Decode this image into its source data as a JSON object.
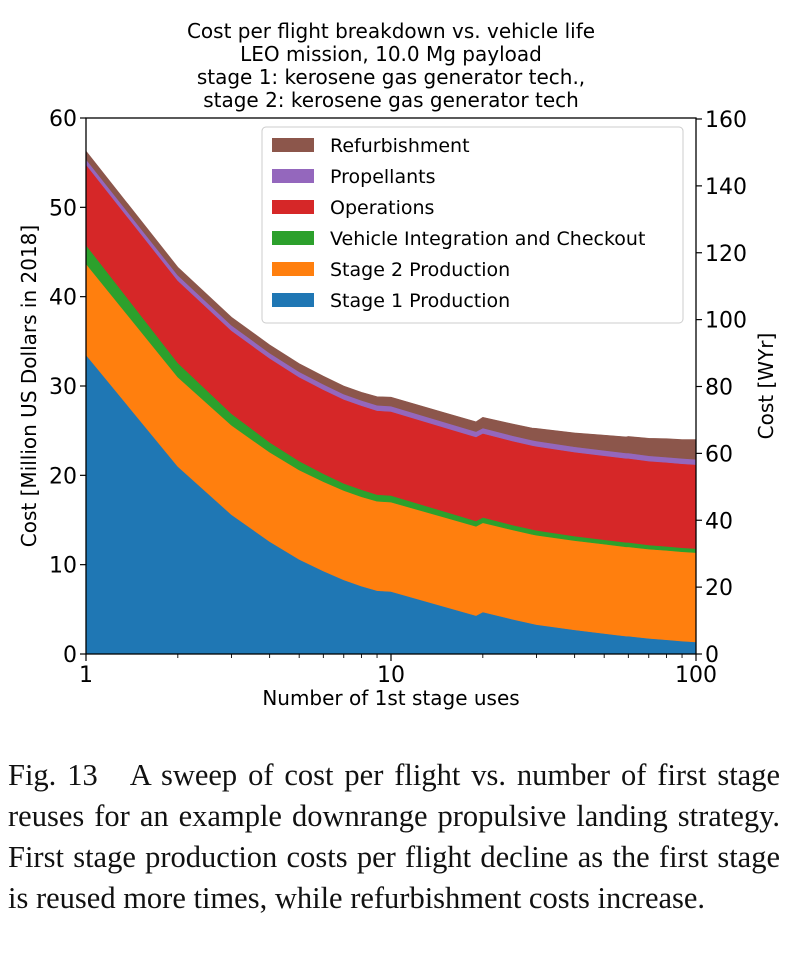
{
  "chart_data": {
    "type": "area",
    "stacked": true,
    "title_lines": [
      "Cost per flight breakdown vs. vehicle life",
      "LEO mission, 10.0 Mg payload",
      "stage 1: kerosene gas generator tech.,",
      "stage 2: kerosene gas generator tech"
    ],
    "xlabel": "Number of 1st stage uses",
    "ylabel": "Cost [Million US Dollars in 2018]",
    "ylabel_right": "Cost [WYr]",
    "x_scale": "log",
    "xlim": [
      1,
      100
    ],
    "ylim": [
      0,
      60
    ],
    "ylim_right": [
      0,
      160.3
    ],
    "x_ticks": [
      1,
      10,
      100
    ],
    "x_tick_labels": [
      "1",
      "10",
      "100"
    ],
    "y_ticks": [
      0,
      10,
      20,
      30,
      40,
      50,
      60
    ],
    "y_tick_labels": [
      "0",
      "10",
      "20",
      "30",
      "40",
      "50",
      "60"
    ],
    "y_right_ticks": [
      0,
      20,
      40,
      60,
      80,
      100,
      120,
      140,
      160
    ],
    "y_right_tick_labels": [
      "0",
      "20",
      "40",
      "60",
      "80",
      "100",
      "120",
      "140",
      "160"
    ],
    "legend_position": "top-right",
    "x": [
      1,
      2,
      3,
      4,
      5,
      6,
      7,
      8,
      9,
      10,
      15,
      19,
      20,
      25,
      29,
      30,
      40,
      50,
      59,
      60,
      70,
      80,
      90,
      100
    ],
    "series": [
      {
        "name": "Stage 1 Production",
        "color": "#1f77b4",
        "values": [
          33.5,
          21.0,
          15.6,
          12.6,
          10.6,
          9.3,
          8.3,
          7.6,
          7.1,
          7.0,
          5.3,
          4.3,
          4.7,
          3.9,
          3.4,
          3.3,
          2.7,
          2.3,
          2.0,
          2.0,
          1.75,
          1.6,
          1.45,
          1.35
        ]
      },
      {
        "name": "Stage 2 Production",
        "color": "#ff7f0e",
        "values": [
          10.2,
          10.0,
          10.0,
          10.0,
          10.0,
          10.0,
          10.0,
          10.0,
          10.0,
          10.0,
          10.0,
          10.0,
          10.0,
          10.0,
          10.0,
          10.0,
          10.0,
          10.0,
          10.0,
          10.0,
          10.0,
          10.0,
          10.0,
          10.0
        ]
      },
      {
        "name": "Vehicle Integration and Checkout",
        "color": "#2ca02c",
        "values": [
          2.1,
          1.6,
          1.3,
          1.1,
          1.0,
          0.9,
          0.8,
          0.8,
          0.75,
          0.75,
          0.65,
          0.6,
          0.6,
          0.55,
          0.55,
          0.55,
          0.5,
          0.5,
          0.5,
          0.5,
          0.45,
          0.45,
          0.45,
          0.45
        ]
      },
      {
        "name": "Operations",
        "color": "#d62728",
        "values": [
          9.0,
          9.2,
          9.3,
          9.4,
          9.4,
          9.4,
          9.4,
          9.4,
          9.4,
          9.4,
          9.4,
          9.4,
          9.4,
          9.4,
          9.4,
          9.4,
          9.4,
          9.4,
          9.4,
          9.4,
          9.4,
          9.4,
          9.4,
          9.4
        ]
      },
      {
        "name": "Propellants",
        "color": "#9467bd",
        "values": [
          0.6,
          0.6,
          0.6,
          0.6,
          0.6,
          0.6,
          0.6,
          0.6,
          0.6,
          0.6,
          0.6,
          0.6,
          0.6,
          0.6,
          0.6,
          0.6,
          0.6,
          0.6,
          0.6,
          0.6,
          0.6,
          0.6,
          0.6,
          0.6
        ]
      },
      {
        "name": "Refurbishment",
        "color": "#8c564b",
        "values": [
          0.9,
          0.9,
          0.9,
          0.9,
          0.9,
          0.9,
          0.9,
          0.9,
          0.95,
          1.0,
          1.05,
          1.1,
          1.2,
          1.3,
          1.35,
          1.4,
          1.55,
          1.7,
          1.8,
          1.85,
          1.95,
          2.05,
          2.1,
          2.2
        ]
      }
    ]
  },
  "caption": {
    "figure_number": "Fig. 13",
    "text": "A sweep of cost per flight vs.  number of first stage reuses for an example downrange propulsive landing strategy. First stage production costs per flight decline as the first stage is reused more times, while refurbishment costs increase."
  }
}
